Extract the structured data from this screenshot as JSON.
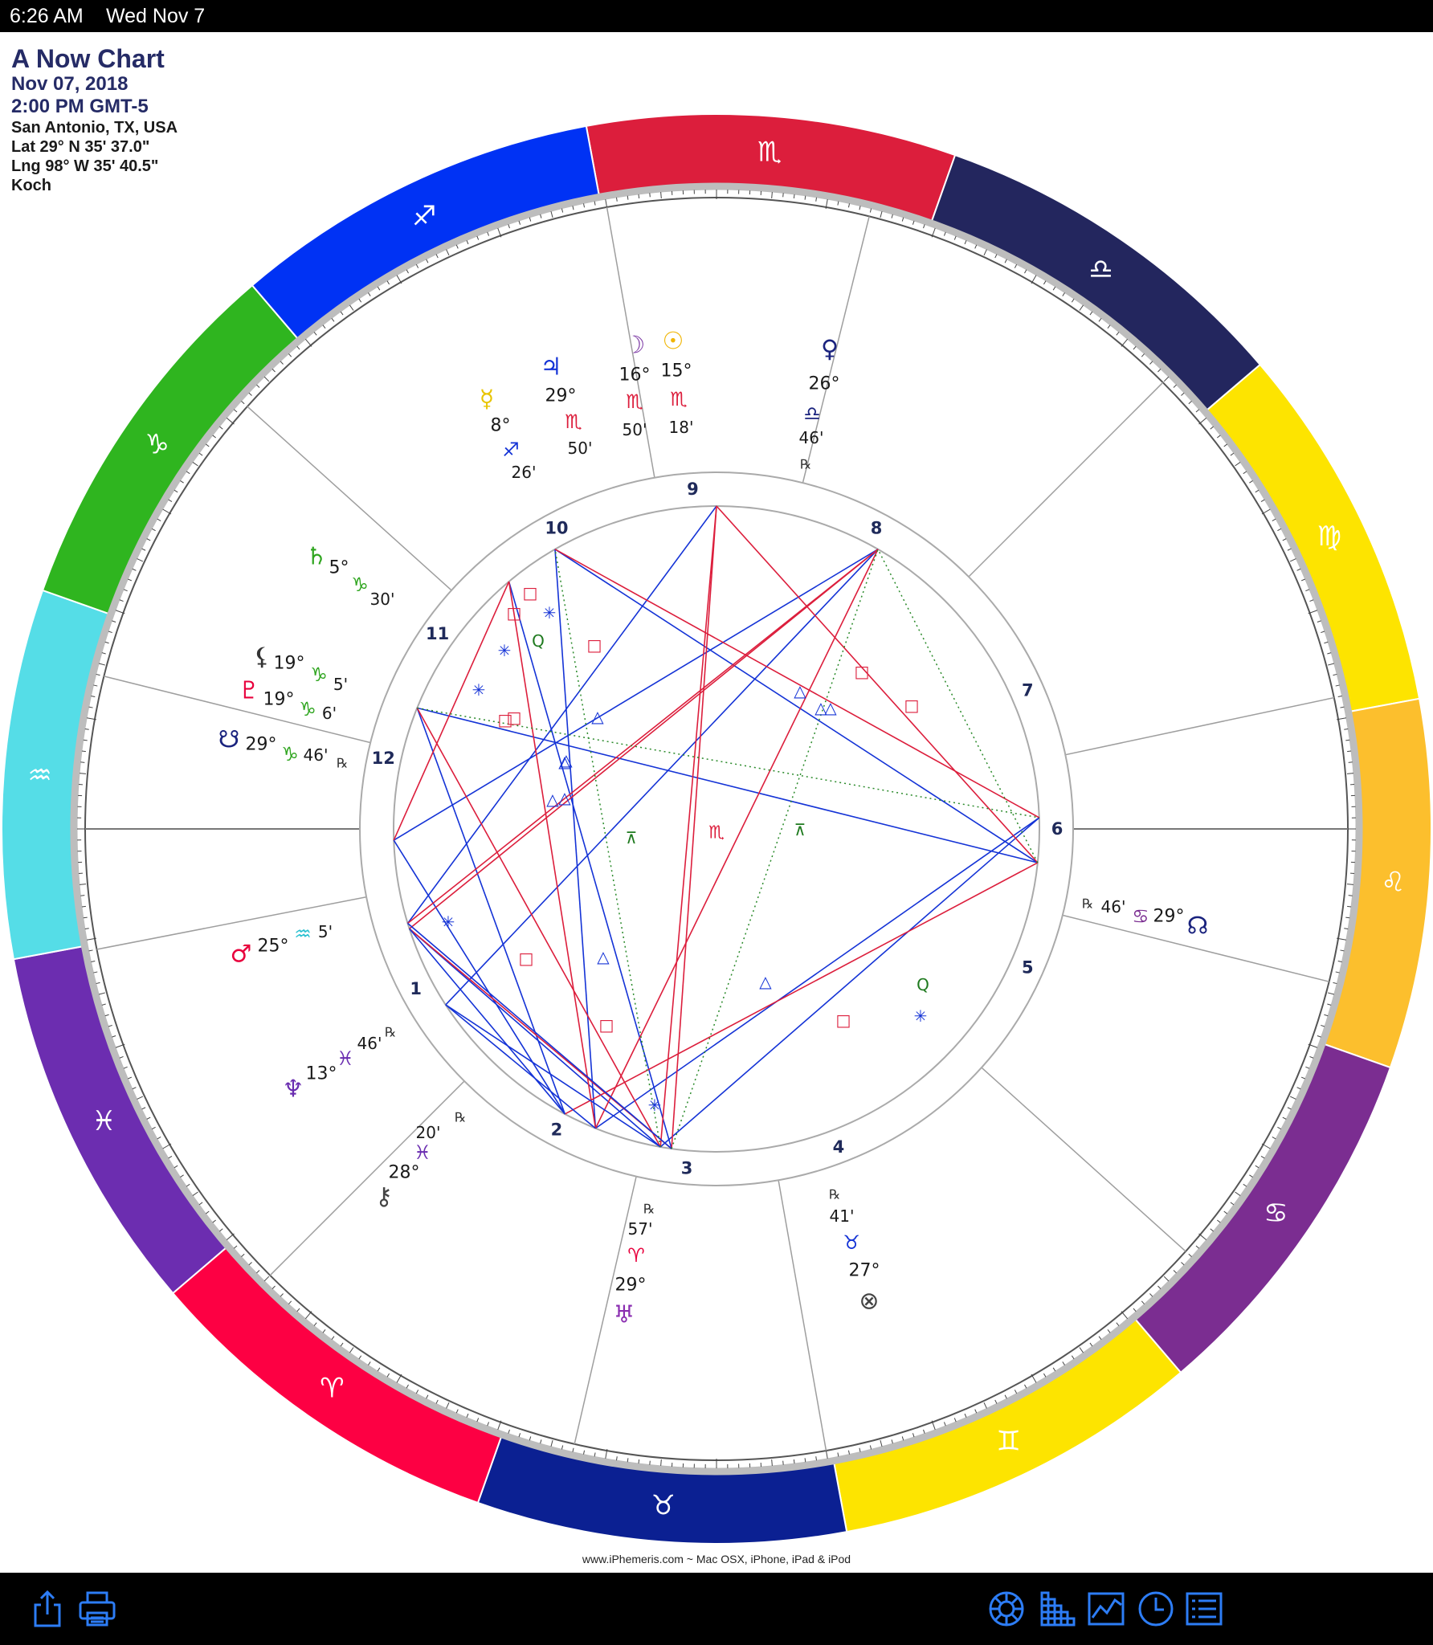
{
  "status_bar": {
    "time": "6:26 AM",
    "date": "Wed Nov 7"
  },
  "chart_info": {
    "title": "A Now Chart",
    "date": "Nov 07, 2018",
    "time": "2:00 PM GMT-5",
    "location": "San Antonio, TX, USA",
    "latitude": "Lat 29° N 35' 37.0\"",
    "longitude": "Lng 98° W 35' 40.5\"",
    "house_system": "Koch"
  },
  "zodiac_ring": [
    {
      "sign": "scorpio",
      "glyph": "♏",
      "color": "#dc1e3c"
    },
    {
      "sign": "libra",
      "glyph": "♎",
      "color": "#23265e"
    },
    {
      "sign": "virgo",
      "glyph": "♍",
      "color": "#fde400"
    },
    {
      "sign": "leo",
      "glyph": "♌",
      "color": "#fcbf2d"
    },
    {
      "sign": "cancer",
      "glyph": "♋",
      "color": "#7b2d91"
    },
    {
      "sign": "gemini",
      "glyph": "♊",
      "color": "#fde400"
    },
    {
      "sign": "taurus",
      "glyph": "♉",
      "color": "#0b2092"
    },
    {
      "sign": "aries",
      "glyph": "♈",
      "color": "#fd0043"
    },
    {
      "sign": "pisces",
      "glyph": "♓",
      "color": "#6c2db0"
    },
    {
      "sign": "aquarius",
      "glyph": "♒",
      "color": "#55dde7"
    },
    {
      "sign": "capricorn",
      "glyph": "♑",
      "color": "#2fb51f"
    },
    {
      "sign": "sagittarius",
      "glyph": "♐",
      "color": "#0032f4"
    }
  ],
  "houses": [
    "1",
    "2",
    "3",
    "4",
    "5",
    "6",
    "7",
    "8",
    "9",
    "10",
    "11",
    "12"
  ],
  "planets": [
    {
      "name": "moon",
      "glyph": "☽",
      "degree": "16°",
      "sign_glyph": "♏",
      "minute": "50'",
      "color": "#7d3aa5",
      "sign_color": "#dc1e3c",
      "retro": ""
    },
    {
      "name": "sun",
      "glyph": "☉",
      "degree": "15°",
      "sign_glyph": "♏",
      "minute": "18'",
      "color": "#f0b400",
      "sign_color": "#dc1e3c",
      "retro": ""
    },
    {
      "name": "jupiter",
      "glyph": "♃",
      "degree": "29°",
      "sign_glyph": "♏",
      "minute": "50'",
      "color": "#1433d6",
      "sign_color": "#dc1e3c",
      "retro": ""
    },
    {
      "name": "mercury",
      "glyph": "☿",
      "degree": "8°",
      "sign_glyph": "♐",
      "minute": "26'",
      "color": "#e8c400",
      "sign_color": "#1433d6",
      "retro": ""
    },
    {
      "name": "venus",
      "glyph": "♀",
      "degree": "26°",
      "sign_glyph": "♎",
      "minute": "46'",
      "color": "#1a237e",
      "sign_color": "#1a237e",
      "retro": "℞"
    },
    {
      "name": "saturn",
      "glyph": "♄",
      "degree": "5°",
      "sign_glyph": "♑",
      "minute": "30'",
      "color": "#2fa51f",
      "sign_color": "#2fa51f",
      "retro": ""
    },
    {
      "name": "lilith",
      "glyph": "⚸",
      "degree": "19°",
      "sign_glyph": "♑",
      "minute": "5'",
      "color": "#333333",
      "sign_color": "#2fa51f",
      "retro": ""
    },
    {
      "name": "pluto",
      "glyph": "♇",
      "degree": "19°",
      "sign_glyph": "♑",
      "minute": "6'",
      "color": "#e8003c",
      "sign_color": "#2fa51f",
      "retro": ""
    },
    {
      "name": "south-node",
      "glyph": "☋",
      "degree": "29°",
      "sign_glyph": "♑",
      "minute": "46'",
      "color": "#1a237e",
      "sign_color": "#2fa51f",
      "retro": "℞"
    },
    {
      "name": "mars",
      "glyph": "♂",
      "degree": "25°",
      "sign_glyph": "♒",
      "minute": "5'",
      "color": "#e8003c",
      "sign_color": "#29c0d0",
      "retro": ""
    },
    {
      "name": "neptune",
      "glyph": "♆",
      "degree": "13°",
      "sign_glyph": "♓",
      "minute": "46'",
      "color": "#6a2db0",
      "sign_color": "#6a2db0",
      "retro": "℞"
    },
    {
      "name": "chiron",
      "glyph": "⚷",
      "degree": "28°",
      "sign_glyph": "♓",
      "minute": "20'",
      "color": "#444444",
      "sign_color": "#6a2db0",
      "retro": "℞"
    },
    {
      "name": "uranus",
      "glyph": "♅",
      "degree": "29°",
      "sign_glyph": "♈",
      "minute": "57'",
      "color": "#8a2db0",
      "sign_color": "#e8003c",
      "retro": "℞"
    },
    {
      "name": "fortune",
      "glyph": "⊗",
      "degree": "27°",
      "sign_glyph": "♉",
      "minute": "41'",
      "color": "#444444",
      "sign_color": "#1433d6",
      "retro": "℞"
    },
    {
      "name": "north-node",
      "glyph": "☊",
      "degree": "29°",
      "sign_glyph": "♋",
      "minute": "46'",
      "color": "#1a237e",
      "sign_color": "#7b2d91",
      "retro": "℞"
    }
  ],
  "footer_credit": "www.iPhemeris.com ~ Mac OSX, iPhone, iPad & iPod",
  "toolbar": {
    "left": [
      "share-icon",
      "print-icon"
    ],
    "right": [
      "chart-wheel-icon",
      "aspect-grid-icon",
      "graph-icon",
      "clock-icon",
      "list-icon"
    ]
  }
}
